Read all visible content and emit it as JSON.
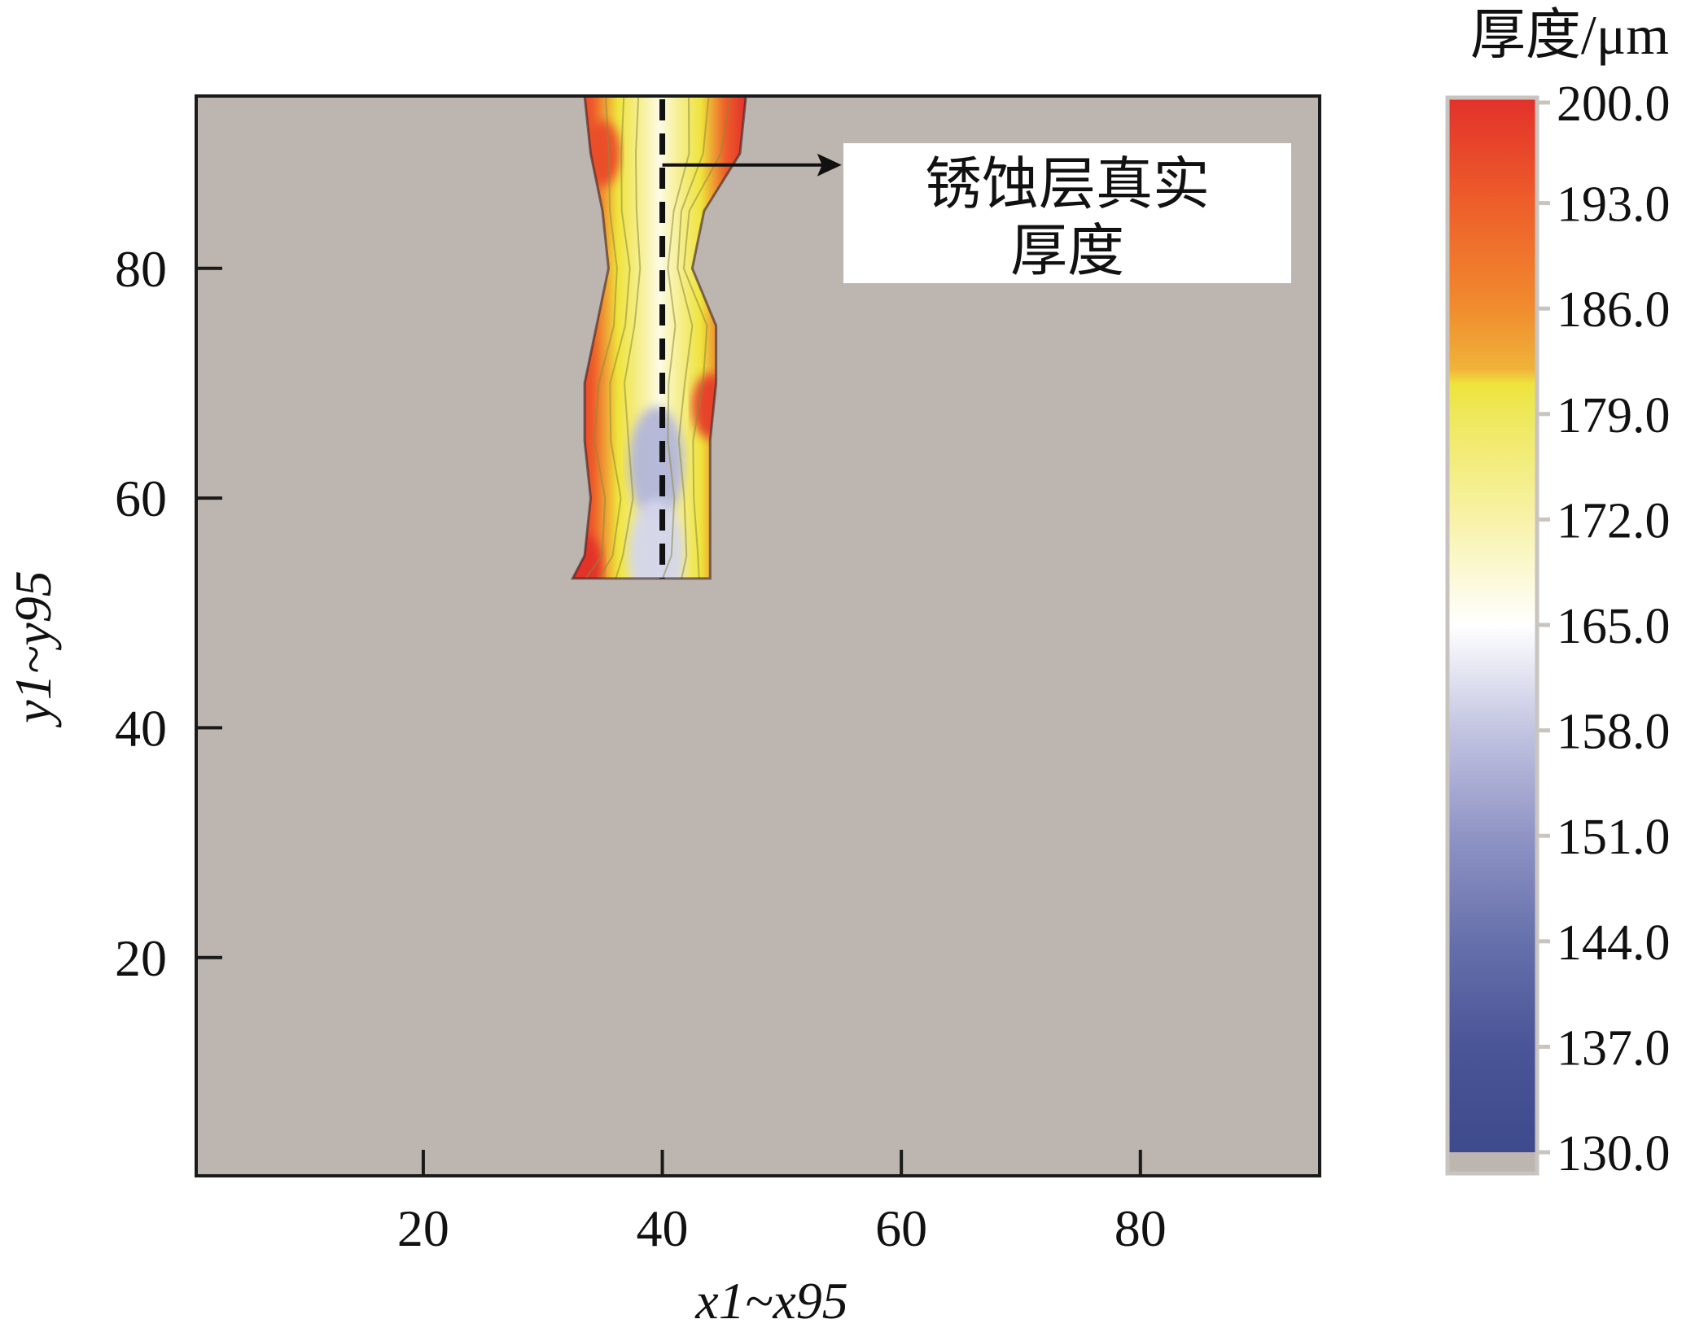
{
  "chart_data": {
    "type": "heatmap",
    "xlabel": "x1~x95",
    "ylabel": "y1~y95",
    "xlim": [
      1,
      95
    ],
    "ylim": [
      1,
      95
    ],
    "xticks": [
      20,
      40,
      60,
      80
    ],
    "yticks": [
      20,
      40,
      60,
      80
    ],
    "colorbar": {
      "title": "厚度/μm",
      "min": 130.0,
      "max": 200.0,
      "tick_labels": [
        "200.0",
        "193.0",
        "186.0",
        "179.0",
        "172.0",
        "165.0",
        "158.0",
        "151.0",
        "144.0",
        "137.0",
        "130.0"
      ],
      "stops": [
        {
          "value": 130,
          "color": "#3d4a8c"
        },
        {
          "value": 137,
          "color": "#4a5598"
        },
        {
          "value": 144,
          "color": "#6670ab"
        },
        {
          "value": 151,
          "color": "#8f94c5"
        },
        {
          "value": 158,
          "color": "#c2c4e1"
        },
        {
          "value": 165,
          "color": "#ffffff"
        },
        {
          "value": 172,
          "color": "#f8f2a8"
        },
        {
          "value": 179,
          "color": "#eee85a"
        },
        {
          "value": 181,
          "color": "#efe33c"
        },
        {
          "value": 182,
          "color": "#f0b23a"
        },
        {
          "value": 186,
          "color": "#f08c2e"
        },
        {
          "value": 193,
          "color": "#ee5e2a"
        },
        {
          "value": 200,
          "color": "#e2312b"
        }
      ]
    },
    "background_color": "#bdb5b0",
    "region": {
      "y_range": [
        53,
        95
      ],
      "rows": [
        {
          "y": 95,
          "left": 33.5,
          "right": 47.0
        },
        {
          "y": 90,
          "left": 34.0,
          "right": 46.5
        },
        {
          "y": 85,
          "left": 35.0,
          "right": 43.5
        },
        {
          "y": 80,
          "left": 35.5,
          "right": 42.5
        },
        {
          "y": 75,
          "left": 34.5,
          "right": 44.5
        },
        {
          "y": 70,
          "left": 33.5,
          "right": 44.5
        },
        {
          "y": 65,
          "left": 33.5,
          "right": 44.0
        },
        {
          "y": 60,
          "left": 34.0,
          "right": 44.0
        },
        {
          "y": 55,
          "left": 33.5,
          "right": 44.0
        },
        {
          "y": 53,
          "left": 32.5,
          "right": 44.0
        }
      ],
      "cold_spots": [
        {
          "x": 39.5,
          "y": 63,
          "value": 156
        },
        {
          "x": 39.5,
          "y": 55,
          "value": 160
        }
      ],
      "hot_spots": [
        {
          "x": 33.5,
          "y": 54,
          "value": 200
        },
        {
          "x": 44.0,
          "y": 68,
          "value": 198
        },
        {
          "x": 35.0,
          "y": 90,
          "value": 196
        }
      ]
    },
    "centerline_x": 40,
    "annotation": {
      "text_lines": [
        "锈蚀层真实",
        "厚度"
      ],
      "arrow_from": [
        40,
        89
      ],
      "arrow_to": [
        55,
        89
      ]
    }
  }
}
